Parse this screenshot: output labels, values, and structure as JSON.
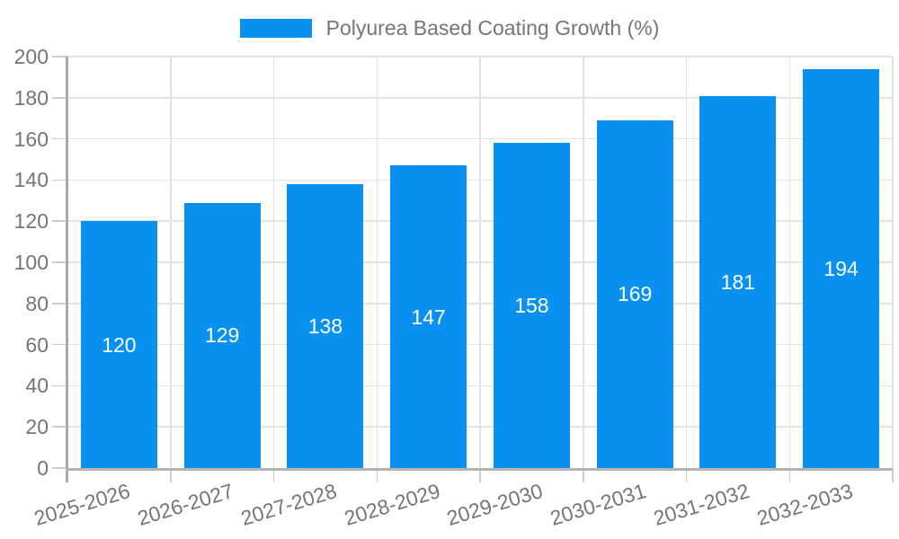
{
  "legend": {
    "label": "Polyurea Based Coating Growth (%)"
  },
  "chart_data": {
    "type": "bar",
    "title": "Polyurea Based Coating Growth (%)",
    "categories": [
      "2025-2026",
      "2026-2027",
      "2027-2028",
      "2028-2029",
      "2029-2030",
      "2030-2031",
      "2031-2032",
      "2032-2033"
    ],
    "values": [
      120,
      129,
      138,
      147,
      158,
      169,
      181,
      194
    ],
    "xlabel": "",
    "ylabel": "",
    "ylim": [
      0,
      200
    ],
    "ytick_step": 20,
    "yticks": [
      0,
      20,
      40,
      60,
      80,
      100,
      120,
      140,
      160,
      180,
      200
    ],
    "grid": true,
    "legend_position": "top",
    "x_label_rotation_deg": -17,
    "colors": {
      "bar_fill": "#0991f1",
      "data_label_text": "#ffffff",
      "axis_tick_text": "#757575",
      "legend_text": "#757575",
      "gridline": "#e3e3e3",
      "tick_mark": "#cccccc",
      "axis_line": "#b3b3b3"
    }
  }
}
